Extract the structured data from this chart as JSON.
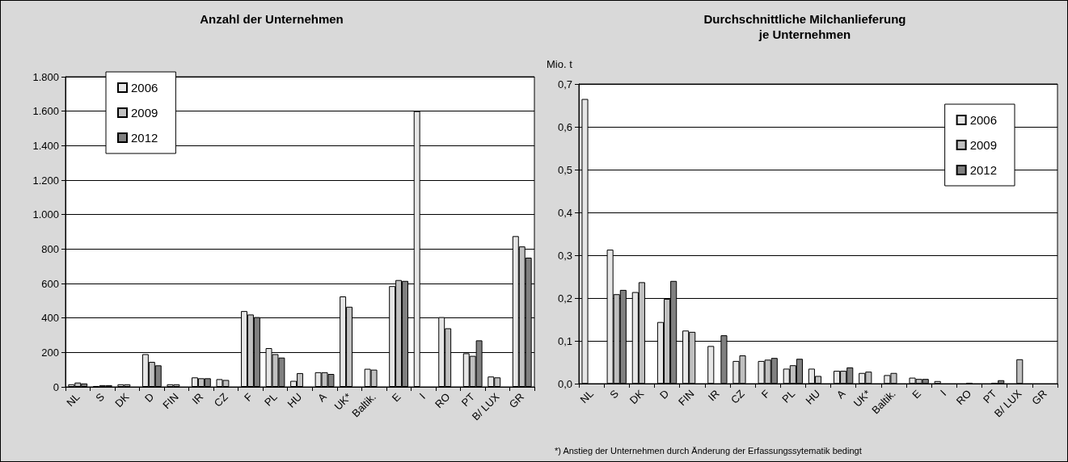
{
  "chart_data": [
    {
      "type": "bar",
      "title": "Anzahl der Unternehmen",
      "categories": [
        "NL",
        "S",
        "DK",
        "D",
        "FIN",
        "IR",
        "CZ",
        "F",
        "PL",
        "HU",
        "A",
        "UK*",
        "Baltik.",
        "E",
        "I",
        "RO",
        "PT",
        "B/ LUX",
        "GR"
      ],
      "series": [
        {
          "name": "2006",
          "color": "#e6e6e6",
          "values": [
            15,
            5,
            15,
            190,
            15,
            55,
            45,
            440,
            225,
            35,
            85,
            525,
            105,
            585,
            1600,
            405,
            195,
            60,
            875
          ]
        },
        {
          "name": "2009",
          "color": "#c0c0c0",
          "values": [
            25,
            10,
            15,
            145,
            15,
            50,
            40,
            420,
            190,
            80,
            85,
            465,
            100,
            620,
            null,
            340,
            180,
            55,
            815
          ]
        },
        {
          "name": "2012",
          "color": "#808080",
          "values": [
            20,
            10,
            null,
            125,
            null,
            50,
            null,
            405,
            170,
            null,
            75,
            null,
            null,
            615,
            null,
            null,
            270,
            null,
            750
          ]
        }
      ],
      "ylim": [
        0,
        1800
      ],
      "yticks": [
        0,
        200,
        400,
        600,
        800,
        {
          "value": 1000,
          "label": "1.000"
        },
        {
          "value": 1200,
          "label": "1.200"
        },
        {
          "value": 1400,
          "label": "1.400"
        },
        {
          "value": 1600,
          "label": "1.600"
        },
        {
          "value": 1800,
          "label": "1.800"
        }
      ],
      "grid": "y",
      "legend": "top left"
    },
    {
      "type": "bar",
      "title": "Durchschnittliche Milchanlieferung\nje Unternehmen",
      "ylabel": "Mio. t",
      "categories": [
        "NL",
        "S",
        "DK",
        "D",
        "FIN",
        "IR",
        "CZ",
        "F",
        "PL",
        "HU",
        "A",
        "UK*",
        "Baltik.",
        "E",
        "I",
        "RO",
        "PT",
        "B/ LUX",
        "GR"
      ],
      "series": [
        {
          "name": "2006",
          "color": "#e6e6e6",
          "values": [
            0.665,
            0.313,
            0.214,
            0.144,
            0.124,
            0.088,
            0.053,
            0.053,
            0.035,
            0.035,
            0.03,
            0.025,
            0.02,
            0.014,
            0.006,
            null,
            null,
            null,
            null
          ]
        },
        {
          "name": "2009",
          "color": "#c0c0c0",
          "values": [
            null,
            0.209,
            0.237,
            0.198,
            0.121,
            null,
            0.066,
            0.056,
            0.043,
            0.018,
            0.03,
            0.028,
            0.025,
            0.011,
            null,
            0.002,
            0.002,
            0.057,
            null
          ]
        },
        {
          "name": "2012",
          "color": "#808080",
          "values": [
            null,
            0.219,
            null,
            0.24,
            null,
            0.113,
            null,
            0.06,
            0.058,
            null,
            0.038,
            null,
            null,
            0.011,
            null,
            null,
            0.008,
            null,
            null
          ]
        }
      ],
      "ylim": [
        0,
        0.7
      ],
      "yticks": [
        {
          "value": 0,
          "label": "0,0"
        },
        {
          "value": 0.1,
          "label": "0,1"
        },
        {
          "value": 0.2,
          "label": "0,2"
        },
        {
          "value": 0.3,
          "label": "0,3"
        },
        {
          "value": 0.4,
          "label": "0,4"
        },
        {
          "value": 0.5,
          "label": "0,5"
        },
        {
          "value": 0.6,
          "label": "0,6"
        },
        {
          "value": 0.7,
          "label": "0,7"
        }
      ],
      "grid": "y",
      "legend": "top right",
      "annotations": [
        "*) Anstieg der Unternehmen durch Änderung der Erfassungssytematik bedingt"
      ]
    }
  ]
}
